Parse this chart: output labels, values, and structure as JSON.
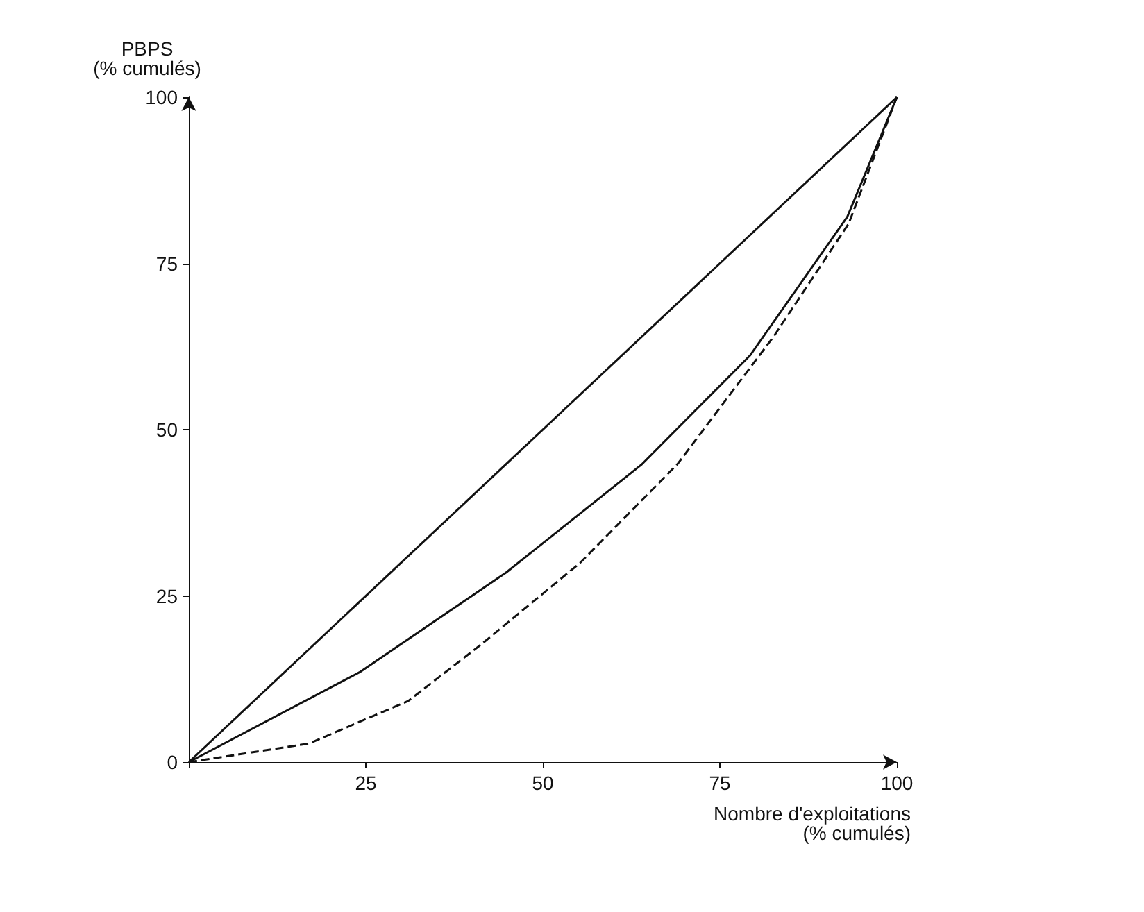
{
  "chart_data": {
    "type": "line",
    "xlabel": "Nombre d'exploitations\n(% cumulés)",
    "ylabel": "PBPS\n(% cumulés)",
    "xlim": [
      0,
      100
    ],
    "ylim": [
      0,
      100
    ],
    "xticks": [
      {
        "value": 0,
        "label": null
      },
      25,
      50,
      75,
      100
    ],
    "yticks": [
      0,
      25,
      50,
      75,
      100
    ],
    "marker": "none",
    "series": [
      {
        "color": "#111111",
        "line_style": "solid",
        "x": [
          0,
          100
        ],
        "values": [
          0,
          100
        ]
      },
      {
        "color": "#111111",
        "line_style": "solid",
        "x": [
          0,
          24.1,
          44.8,
          64,
          79.3,
          93,
          100
        ],
        "values": [
          0,
          13.5,
          28.5,
          44.8,
          61.2,
          82,
          100
        ]
      },
      {
        "color": "#111111",
        "line_style": "dashed",
        "x": [
          0,
          17,
          31,
          41.3,
          55.2,
          69,
          82.6,
          93.2,
          100
        ],
        "values": [
          0,
          2.8,
          9.2,
          17.7,
          29.9,
          44.8,
          64,
          81,
          100
        ]
      }
    ]
  }
}
